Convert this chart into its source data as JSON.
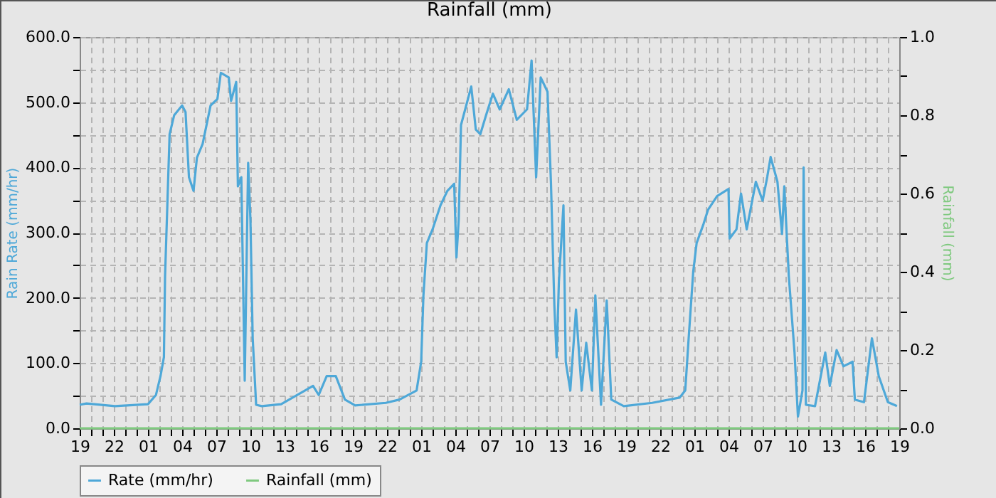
{
  "chart_data": {
    "type": "line",
    "title": "Rainfall (mm)",
    "ylabel": "Rain Rate (mm/hr)",
    "y2label": "Rainfall (mm)",
    "xlim": [
      "--01-01T19:00",
      "--01-04T19:00"
    ],
    "xticks": [
      {
        "value": "--01-01T19:00",
        "label": "19"
      },
      {
        "value": "--01-01T20:00",
        "label": null
      },
      {
        "value": "--01-01T21:00",
        "label": null
      },
      {
        "value": "--01-01T22:00",
        "label": "22"
      },
      {
        "value": "--01-01T23:00",
        "label": null
      },
      {
        "value": "--01-02T00:00",
        "label": null
      },
      {
        "value": "--01-02T01:00",
        "label": "01"
      },
      {
        "value": "--01-02T02:00",
        "label": null
      },
      {
        "value": "--01-02T03:00",
        "label": null
      },
      {
        "value": "--01-02T04:00",
        "label": "04"
      },
      {
        "value": "--01-02T05:00",
        "label": null
      },
      {
        "value": "--01-02T06:00",
        "label": null
      },
      {
        "value": "--01-02T07:00",
        "label": "07"
      },
      {
        "value": "--01-02T08:00",
        "label": null
      },
      {
        "value": "--01-02T09:00",
        "label": null
      },
      {
        "value": "--01-02T10:00",
        "label": "10"
      },
      {
        "value": "--01-02T11:00",
        "label": null
      },
      {
        "value": "--01-02T12:00",
        "label": null
      },
      {
        "value": "--01-02T13:00",
        "label": "13"
      },
      {
        "value": "--01-02T14:00",
        "label": null
      },
      {
        "value": "--01-02T15:00",
        "label": null
      },
      {
        "value": "--01-02T16:00",
        "label": "16"
      },
      {
        "value": "--01-02T17:00",
        "label": null
      },
      {
        "value": "--01-02T18:00",
        "label": null
      },
      {
        "value": "--01-02T19:00",
        "label": "19"
      },
      {
        "value": "--01-02T20:00",
        "label": null
      },
      {
        "value": "--01-02T21:00",
        "label": null
      },
      {
        "value": "--01-02T22:00",
        "label": "22"
      },
      {
        "value": "--01-02T23:00",
        "label": null
      },
      {
        "value": "--01-03T00:00",
        "label": null
      },
      {
        "value": "--01-03T01:00",
        "label": "01"
      },
      {
        "value": "--01-03T02:00",
        "label": null
      },
      {
        "value": "--01-03T03:00",
        "label": null
      },
      {
        "value": "--01-03T04:00",
        "label": "04"
      },
      {
        "value": "--01-03T05:00",
        "label": null
      },
      {
        "value": "--01-03T06:00",
        "label": null
      },
      {
        "value": "--01-03T07:00",
        "label": "07"
      },
      {
        "value": "--01-03T08:00",
        "label": null
      },
      {
        "value": "--01-03T09:00",
        "label": null
      },
      {
        "value": "--01-03T10:00",
        "label": "10"
      },
      {
        "value": "--01-03T11:00",
        "label": null
      },
      {
        "value": "--01-03T12:00",
        "label": null
      },
      {
        "value": "--01-03T13:00",
        "label": "13"
      },
      {
        "value": "--01-03T14:00",
        "label": null
      },
      {
        "value": "--01-03T15:00",
        "label": null
      },
      {
        "value": "--01-03T16:00",
        "label": "16"
      },
      {
        "value": "--01-03T17:00",
        "label": null
      },
      {
        "value": "--01-03T18:00",
        "label": null
      },
      {
        "value": "--01-03T19:00",
        "label": "19"
      },
      {
        "value": "--01-03T20:00",
        "label": null
      },
      {
        "value": "--01-03T21:00",
        "label": null
      },
      {
        "value": "--01-03T22:00",
        "label": "22"
      },
      {
        "value": "--01-03T23:00",
        "label": null
      },
      {
        "value": "--01-04T00:00",
        "label": null
      },
      {
        "value": "--01-04T01:00",
        "label": "01"
      },
      {
        "value": "--01-04T02:00",
        "label": null
      },
      {
        "value": "--01-04T03:00",
        "label": null
      },
      {
        "value": "--01-04T04:00",
        "label": "04"
      },
      {
        "value": "--01-04T05:00",
        "label": null
      },
      {
        "value": "--01-04T06:00",
        "label": null
      },
      {
        "value": "--01-04T07:00",
        "label": "07"
      },
      {
        "value": "--01-04T08:00",
        "label": null
      },
      {
        "value": "--01-04T09:00",
        "label": null
      },
      {
        "value": "--01-04T10:00",
        "label": "10"
      },
      {
        "value": "--01-04T11:00",
        "label": null
      },
      {
        "value": "--01-04T12:00",
        "label": null
      },
      {
        "value": "--01-04T13:00",
        "label": "13"
      },
      {
        "value": "--01-04T14:00",
        "label": null
      },
      {
        "value": "--01-04T15:00",
        "label": null
      },
      {
        "value": "--01-04T16:00",
        "label": "16"
      },
      {
        "value": "--01-04T17:00",
        "label": null
      },
      {
        "value": "--01-04T18:00",
        "label": null
      },
      {
        "value": "--01-04T19:00",
        "label": "19"
      }
    ],
    "ylim": [
      0,
      600
    ],
    "yticks": [
      {
        "value": 0,
        "label": "0.0"
      },
      {
        "value": 50,
        "label": null
      },
      {
        "value": 100,
        "label": "100.0"
      },
      {
        "value": 150,
        "label": null
      },
      {
        "value": 200,
        "label": "200.0"
      },
      {
        "value": 250,
        "label": null
      },
      {
        "value": 300,
        "label": "300.0"
      },
      {
        "value": 350,
        "label": null
      },
      {
        "value": 400,
        "label": "400.0"
      },
      {
        "value": 450,
        "label": null
      },
      {
        "value": 500,
        "label": "500.0"
      },
      {
        "value": 550,
        "label": null
      },
      {
        "value": 600,
        "label": "600.0"
      }
    ],
    "y2lim": [
      0,
      1
    ],
    "y2ticks": [
      {
        "value": 0,
        "label": "0.0"
      },
      {
        "value": 0.1,
        "label": null
      },
      {
        "value": 0.2,
        "label": "0.2"
      },
      {
        "value": 0.3,
        "label": null
      },
      {
        "value": 0.4,
        "label": "0.4"
      },
      {
        "value": 0.5,
        "label": null
      },
      {
        "value": 0.6,
        "label": "0.6"
      },
      {
        "value": 0.7,
        "label": null
      },
      {
        "value": 0.8,
        "label": "0.8"
      },
      {
        "value": 0.9,
        "label": null
      },
      {
        "value": 1,
        "label": "1.0"
      }
    ],
    "grid": true,
    "legend": "bottom",
    "series": [
      {
        "name": "Rate (mm/hr)",
        "color": "#4ea8d8",
        "x": [
          "--01-01T19:00",
          "--01-01T19:36",
          "--01-01T22:06",
          "--01-02T01:00",
          "--01-02T01:42",
          "--01-02T02:06",
          "--01-02T02:24",
          "--01-02T02:30",
          "--01-02T02:42",
          "--01-02T02:54",
          "--01-02T03:18",
          "--01-02T04:00",
          "--01-02T04:18",
          "--01-02T04:36",
          "--01-02T05:00",
          "--01-02T05:18",
          "--01-02T05:48",
          "--01-02T06:30",
          "--01-02T07:06",
          "--01-02T07:24",
          "--01-02T08:06",
          "--01-02T08:18",
          "--01-02T08:45",
          "--01-02T08:54",
          "--01-02T09:12",
          "--01-02T09:30",
          "--01-02T09:48",
          "--01-02T10:00",
          "--01-02T10:12",
          "--01-02T10:30",
          "--01-02T11:00",
          "--01-02T12:42",
          "--01-02T14:48",
          "--01-02T15:30",
          "--01-02T16:00",
          "--01-02T16:42",
          "--01-02T17:30",
          "--01-02T18:18",
          "--01-02T19:12",
          "--01-02T21:54",
          "--01-02T23:06",
          "--01-03T00:36",
          "--01-03T01:00",
          "--01-03T01:12",
          "--01-03T01:30",
          "--01-03T02:00",
          "--01-03T02:42",
          "--01-03T03:18",
          "--01-03T03:54",
          "--01-03T04:06",
          "--01-03T04:18",
          "--01-03T04:30",
          "--01-03T05:24",
          "--01-03T05:48",
          "--01-03T06:12",
          "--01-03T06:42",
          "--01-03T07:18",
          "--01-03T07:54",
          "--01-03T08:42",
          "--01-03T09:24",
          "--01-03T10:18",
          "--01-03T10:42",
          "--01-03T11:06",
          "--01-03T11:30",
          "--01-03T12:06",
          "--01-03T12:24",
          "--01-03T12:42",
          "--01-03T12:54",
          "--01-03T13:06",
          "--01-03T13:30",
          "--01-03T13:42",
          "--01-03T14:06",
          "--01-03T14:36",
          "--01-03T15:06",
          "--01-03T15:30",
          "--01-03T16:00",
          "--01-03T16:18",
          "--01-03T16:48",
          "--01-03T17:18",
          "--01-03T17:42",
          "--01-03T18:48",
          "--01-03T21:18",
          "--01-03T23:42",
          "--01-04T00:12",
          "--01-04T00:30",
          "--01-04T00:54",
          "--01-04T01:12",
          "--01-04T01:48",
          "--01-04T02:12",
          "--01-04T03:00",
          "--01-04T04:00",
          "--01-04T04:06",
          "--01-04T04:42",
          "--01-04T05:06",
          "--01-04T05:36",
          "--01-04T06:24",
          "--01-04T07:00",
          "--01-04T07:24",
          "--01-04T07:42",
          "--01-04T08:18",
          "--01-04T08:42",
          "--01-04T08:54",
          "--01-04T09:18",
          "--01-04T09:48",
          "--01-04T10:06",
          "--01-04T10:30",
          "--01-04T10:36",
          "--01-04T10:48",
          "--01-04T11:36",
          "--01-04T12:30",
          "--01-04T12:54",
          "--01-04T13:30",
          "--01-04T14:06",
          "--01-04T14:54",
          "--01-04T15:06",
          "--01-04T15:54",
          "--01-04T16:36",
          "--01-04T17:12",
          "--01-04T18:00",
          "--01-04T18:48"
        ],
        "values": [
          36,
          38,
          34,
          37,
          51,
          80,
          109,
          233,
          342,
          451,
          480,
          495,
          485,
          385,
          364,
          415,
          436,
          495,
          505,
          545,
          538,
          502,
          531,
          371,
          385,
          73,
          407,
          320,
          138,
          36,
          34,
          37,
          58,
          65,
          51,
          80,
          80,
          44,
          35,
          39,
          44,
          58,
          102,
          204,
          284,
          305,
          342,
          364,
          375,
          262,
          320,
          465,
          524,
          458,
          451,
          480,
          513,
          489,
          520,
          473,
          489,
          564,
          385,
          538,
          516,
          378,
          189,
          109,
          225,
          342,
          102,
          58,
          182,
          58,
          131,
          58,
          204,
          36,
          196,
          44,
          34,
          39,
          47,
          58,
          138,
          240,
          284,
          313,
          335,
          356,
          367,
          291,
          305,
          360,
          305,
          378,
          349,
          385,
          416,
          378,
          298,
          371,
          233,
          116,
          18,
          58,
          400,
          36,
          34,
          116,
          65,
          120,
          95,
          102,
          44,
          40,
          138,
          80,
          40,
          34
        ]
      },
      {
        "name": "Rainfall (mm)",
        "type": "line",
        "axis": "y2",
        "color": "#7fc97f",
        "x": [
          "--01-01T19:00",
          "--01-04T19:00"
        ],
        "values": [
          0,
          0
        ]
      }
    ]
  }
}
